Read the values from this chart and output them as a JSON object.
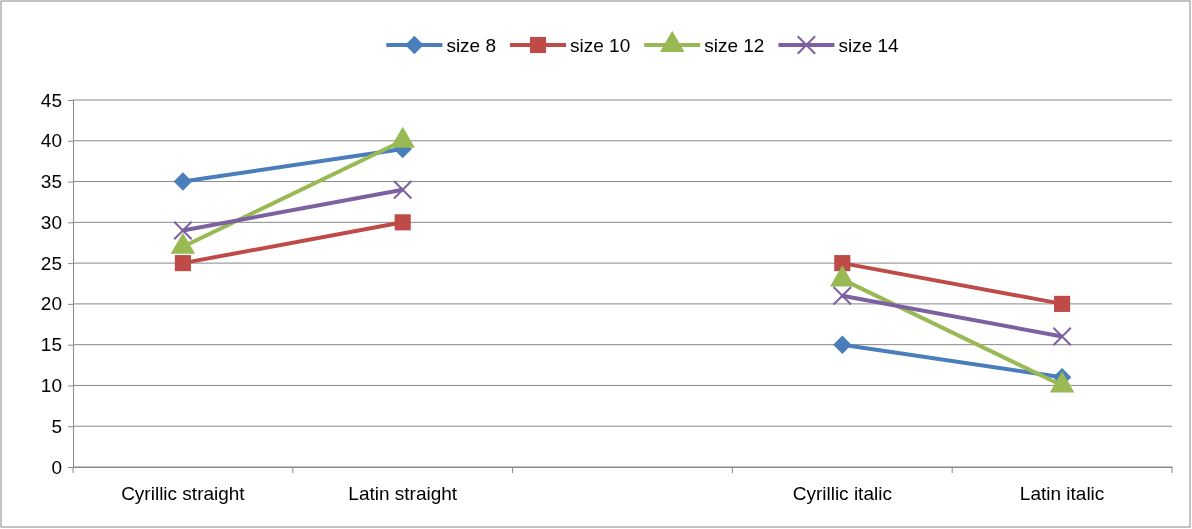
{
  "chart_data": {
    "type": "line",
    "categories": [
      "Cyrillic straight",
      "Latin straight",
      null,
      "Cyrillic italic",
      "Latin italic"
    ],
    "series": [
      {
        "name": "size 8",
        "color": "#4a7ebb",
        "marker": "diamond",
        "values": [
          35,
          39,
          null,
          15,
          11
        ]
      },
      {
        "name": "size 10",
        "color": "#be4b48",
        "marker": "square",
        "values": [
          25,
          30,
          null,
          25,
          20
        ]
      },
      {
        "name": "size 12",
        "color": "#98b954",
        "marker": "triangle",
        "values": [
          27,
          40,
          null,
          23,
          10
        ]
      },
      {
        "name": "size 14",
        "color": "#7d60a0",
        "marker": "cross",
        "values": [
          29,
          34,
          null,
          21,
          16
        ]
      }
    ],
    "ylim": [
      0,
      45
    ],
    "yticks": [
      0,
      5,
      10,
      15,
      20,
      25,
      30,
      35,
      40,
      45
    ],
    "grid": "y",
    "legend": "top"
  }
}
